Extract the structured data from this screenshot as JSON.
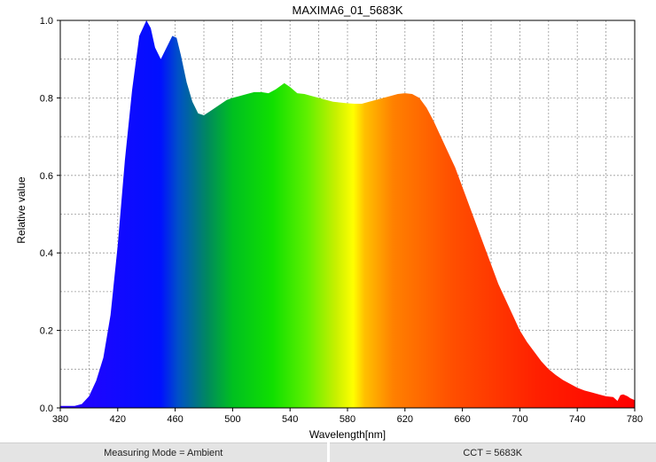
{
  "chart_data": {
    "type": "area",
    "title": "MAXIMA6_01_5683K",
    "xlabel": "Wavelength[nm]",
    "ylabel": "Relative value",
    "xlim": [
      380,
      780
    ],
    "ylim": [
      0,
      1.0
    ],
    "x_ticks": [
      "380",
      "420",
      "460",
      "500",
      "540",
      "580",
      "620",
      "660",
      "700",
      "740",
      "780"
    ],
    "y_ticks": [
      "0.0",
      "0.2",
      "0.4",
      "0.6",
      "0.8",
      "1.0"
    ],
    "grid": true,
    "fill": "spectral-gradient",
    "series": [
      {
        "x": [
          380,
          390,
          395,
          400,
          405,
          410,
          415,
          420,
          425,
          430,
          435,
          440,
          443,
          446,
          450,
          454,
          458,
          461,
          464,
          468,
          472,
          476,
          480,
          484,
          488,
          492,
          496,
          500,
          505,
          510,
          515,
          520,
          525,
          530,
          536,
          540,
          545,
          550,
          555,
          560,
          565,
          570,
          575,
          580,
          585,
          590,
          595,
          600,
          605,
          610,
          615,
          620,
          625,
          630,
          635,
          640,
          645,
          650,
          655,
          660,
          665,
          670,
          675,
          680,
          685,
          690,
          695,
          700,
          705,
          710,
          715,
          720,
          725,
          730,
          735,
          740,
          745,
          750,
          755,
          760,
          765,
          768,
          770,
          772,
          775,
          777,
          780
        ],
        "y": [
          0.005,
          0.005,
          0.01,
          0.03,
          0.07,
          0.13,
          0.24,
          0.42,
          0.64,
          0.82,
          0.96,
          1.0,
          0.98,
          0.93,
          0.9,
          0.93,
          0.96,
          0.955,
          0.91,
          0.84,
          0.79,
          0.76,
          0.755,
          0.765,
          0.775,
          0.785,
          0.795,
          0.8,
          0.805,
          0.81,
          0.815,
          0.815,
          0.812,
          0.822,
          0.838,
          0.828,
          0.812,
          0.81,
          0.805,
          0.8,
          0.795,
          0.79,
          0.788,
          0.786,
          0.785,
          0.785,
          0.79,
          0.795,
          0.8,
          0.805,
          0.81,
          0.812,
          0.81,
          0.8,
          0.775,
          0.74,
          0.7,
          0.66,
          0.62,
          0.57,
          0.52,
          0.47,
          0.42,
          0.37,
          0.32,
          0.28,
          0.24,
          0.2,
          0.17,
          0.145,
          0.12,
          0.1,
          0.085,
          0.072,
          0.062,
          0.052,
          0.045,
          0.04,
          0.035,
          0.03,
          0.028,
          0.018,
          0.033,
          0.035,
          0.03,
          0.025,
          0.02
        ]
      }
    ]
  },
  "footer": {
    "measuring_mode": "Measuring Mode = Ambient",
    "cct": "CCT = 5683K"
  }
}
